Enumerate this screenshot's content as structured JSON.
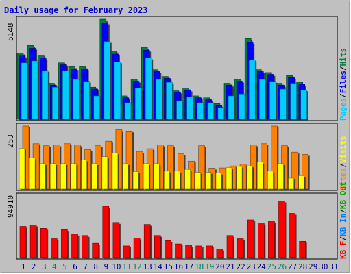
{
  "title": "Daily usage for February 2023",
  "colors": {
    "background": "#ffffff",
    "panel": "#c0c0c0",
    "title": "#0000cc",
    "pages": "#00ccff",
    "files": "#0000ff",
    "hits": "#008040",
    "sites": "#ff8000",
    "visits": "#ffff00",
    "kbytes": "#ff0000",
    "kb_in": "#0080ff",
    "kb_out": "#00a000",
    "day_default": "#000080",
    "day_weekend": "#008060"
  },
  "chart_data": {
    "type": "bar",
    "title": "Daily usage for February 2023",
    "categories": [
      "1",
      "2",
      "3",
      "4",
      "5",
      "6",
      "7",
      "8",
      "9",
      "10",
      "11",
      "12",
      "13",
      "14",
      "15",
      "16",
      "17",
      "18",
      "19",
      "20",
      "21",
      "22",
      "23",
      "24",
      "25",
      "26",
      "27",
      "28",
      "29",
      "30",
      "31"
    ],
    "weekend_days": [
      "4",
      "5",
      "11",
      "12",
      "18",
      "19",
      "25",
      "26"
    ],
    "panels": [
      {
        "name": "hits-files-pages",
        "ymax_label": "5148",
        "ymax": 5148,
        "series": [
          {
            "name": "Hits",
            "color": "#008040",
            "values": [
              3400,
              3800,
              3300,
              1850,
              2900,
              2700,
              2700,
              1650,
              5148,
              3500,
              1200,
              2050,
              3700,
              2550,
              2200,
              1500,
              1600,
              1200,
              1100,
              800,
              1850,
              2050,
              4150,
              2550,
              2400,
              1850,
              2250,
              1900,
              0,
              0,
              0
            ]
          },
          {
            "name": "Files",
            "color": "#0000ff",
            "values": [
              3250,
              3650,
              3150,
              1750,
              2800,
              2600,
              2600,
              1550,
              4950,
              3350,
              1100,
              1950,
              3550,
              2450,
              2100,
              1400,
              1500,
              1100,
              1000,
              700,
              1750,
              1950,
              3950,
              2450,
              2300,
              1750,
              2150,
              1800,
              0,
              0,
              0
            ]
          },
          {
            "name": "Pages",
            "color": "#00ccff",
            "values": [
              2900,
              3000,
              2500,
              1650,
              2500,
              2050,
              1950,
              1200,
              4000,
              2950,
              850,
              1600,
              3150,
              2050,
              1900,
              950,
              1150,
              850,
              850,
              600,
              1200,
              1300,
              3050,
              2050,
              1950,
              1550,
              1850,
              1500,
              0,
              0,
              0
            ]
          }
        ]
      },
      {
        "name": "sites-visits",
        "ymax_label": "253",
        "ymax": 253,
        "series": [
          {
            "name": "Sites",
            "color": "#ff8000",
            "values": [
              253,
              182,
              174,
              177,
              182,
              177,
              159,
              174,
              192,
              238,
              233,
              151,
              162,
              177,
              174,
              141,
              112,
              174,
              84,
              85,
              93,
              100,
              177,
              182,
              253,
              174,
              148,
              139,
              0,
              0,
              0
            ]
          },
          {
            "name": "Visits",
            "color": "#ffff00",
            "values": [
              164,
              125,
              102,
              102,
              102,
              102,
              117,
              102,
              130,
              145,
              102,
              70,
              102,
              102,
              72,
              72,
              79,
              67,
              67,
              64,
              87,
              91,
              93,
              108,
              72,
              102,
              44,
              54,
              0,
              0,
              0
            ]
          }
        ]
      },
      {
        "name": "kbytes",
        "ymax_label": "94910",
        "ymax": 94910,
        "series": [
          {
            "name": "KBytes",
            "color": "#ff0000",
            "values": [
              48000,
              50000,
              45000,
              29000,
              43000,
              36000,
              34000,
              22000,
              79000,
              54000,
              18000,
              30000,
              51000,
              34000,
              26000,
              21000,
              19000,
              18000,
              18000,
              13000,
              34000,
              29000,
              58000,
              53000,
              56000,
              87000,
              68000,
              25000,
              0,
              0,
              0
            ]
          }
        ]
      }
    ],
    "right_legends": [
      [
        {
          "text": "Pages",
          "color": "#00ccff"
        },
        {
          "text": "/",
          "color": "#000000"
        },
        {
          "text": "Files",
          "color": "#0000ff"
        },
        {
          "text": "/",
          "color": "#000000"
        },
        {
          "text": "Hits",
          "color": "#008040"
        }
      ],
      [
        {
          "text": "Sites",
          "color": "#ff8000"
        },
        {
          "text": "/",
          "color": "#000000"
        },
        {
          "text": "Visits",
          "color": "#ffff00"
        }
      ],
      [
        {
          "text": "KB F",
          "color": "#ff0000"
        },
        {
          "text": "/",
          "color": "#000000"
        },
        {
          "text": "KB In",
          "color": "#0080ff"
        },
        {
          "text": "/",
          "color": "#000000"
        },
        {
          "text": "KB Out",
          "color": "#00a000"
        }
      ]
    ]
  }
}
